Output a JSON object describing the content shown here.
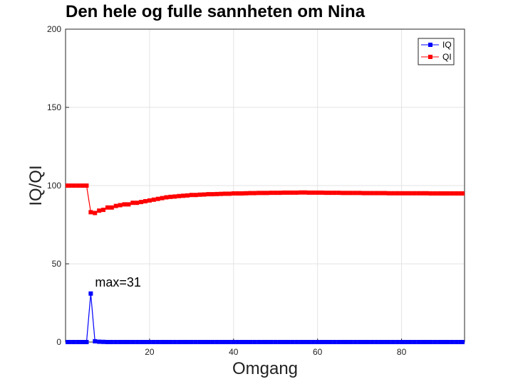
{
  "chart_data": {
    "type": "line",
    "title": "Den hele og fulle sannheten om Nina",
    "xlabel": "Omgang",
    "ylabel": "IQ/QI",
    "xlim": [
      0,
      95
    ],
    "ylim": [
      0,
      200
    ],
    "x_ticks": [
      20,
      40,
      60,
      80
    ],
    "y_ticks": [
      0,
      50,
      100,
      150,
      200
    ],
    "grid": true,
    "legend_position": "top-right",
    "annotation": {
      "text": "max=31",
      "x": 6,
      "y": 31
    },
    "colors": {
      "IQ": "#0000ff",
      "QI": "#ff0000"
    },
    "series": [
      {
        "name": "IQ",
        "x": [
          0,
          1,
          2,
          3,
          4,
          5,
          6,
          7,
          8,
          9,
          10,
          11,
          12,
          13,
          14,
          15,
          16,
          17,
          18,
          19,
          20,
          21,
          22,
          23,
          24,
          25,
          26,
          27,
          28,
          29,
          30,
          31,
          32,
          33,
          34,
          35,
          36,
          37,
          38,
          39,
          40,
          41,
          42,
          43,
          44,
          45,
          46,
          47,
          48,
          49,
          50,
          51,
          52,
          53,
          54,
          55,
          56,
          57,
          58,
          59,
          60,
          61,
          62,
          63,
          64,
          65,
          66,
          67,
          68,
          69,
          70,
          71,
          72,
          73,
          74,
          75,
          76,
          77,
          78,
          79,
          80,
          81,
          82,
          83,
          84,
          85,
          86,
          87,
          88,
          89,
          90,
          91,
          92,
          93,
          94,
          95
        ],
        "y": [
          0,
          0,
          0,
          0,
          0,
          0,
          31,
          0.5,
          0.2,
          0.1,
          0,
          0,
          0,
          0,
          0,
          0,
          0,
          0,
          0,
          0,
          0,
          0,
          0,
          0,
          0,
          0,
          0,
          0,
          0,
          0,
          0,
          0,
          0,
          0,
          0,
          0,
          0,
          0,
          0,
          0,
          0,
          0,
          0,
          0,
          0,
          0,
          0,
          0,
          0,
          0,
          0,
          0,
          0,
          0,
          0,
          0,
          0,
          0,
          0,
          0,
          0,
          0,
          0,
          0,
          0,
          0,
          0,
          0,
          0,
          0,
          0,
          0,
          0,
          0,
          0,
          0,
          0,
          0,
          0,
          0,
          0,
          0,
          0,
          0,
          0,
          0,
          0,
          0,
          0,
          0,
          0,
          0,
          0,
          0,
          0,
          0
        ]
      },
      {
        "name": "QI",
        "x": [
          0,
          1,
          2,
          3,
          4,
          5,
          6,
          7,
          8,
          9,
          10,
          11,
          12,
          13,
          14,
          15,
          16,
          17,
          18,
          19,
          20,
          21,
          22,
          23,
          24,
          25,
          26,
          27,
          28,
          29,
          30,
          31,
          32,
          33,
          34,
          35,
          36,
          37,
          38,
          39,
          40,
          41,
          42,
          43,
          44,
          45,
          46,
          47,
          48,
          49,
          50,
          51,
          52,
          53,
          54,
          55,
          56,
          57,
          58,
          59,
          60,
          61,
          62,
          63,
          64,
          65,
          66,
          67,
          68,
          69,
          70,
          71,
          72,
          73,
          74,
          75,
          76,
          77,
          78,
          79,
          80,
          81,
          82,
          83,
          84,
          85,
          86,
          87,
          88,
          89,
          90,
          91,
          92,
          93,
          94,
          95
        ],
        "y": [
          100,
          100,
          100,
          100,
          100,
          100,
          83,
          82.5,
          84,
          84.5,
          86,
          86,
          87,
          87.5,
          88,
          88,
          89,
          89,
          89.5,
          90,
          90.5,
          91,
          91.5,
          92,
          92.5,
          92.8,
          93,
          93.3,
          93.5,
          93.7,
          94,
          94,
          94.2,
          94.3,
          94.5,
          94.5,
          94.6,
          94.7,
          94.8,
          94.8,
          95,
          95,
          95,
          95.1,
          95.2,
          95.2,
          95.3,
          95.3,
          95.3,
          95.4,
          95.4,
          95.4,
          95.5,
          95.5,
          95.5,
          95.5,
          95.6,
          95.6,
          95.5,
          95.5,
          95.5,
          95.5,
          95.4,
          95.4,
          95.4,
          95.4,
          95.3,
          95.3,
          95.3,
          95.3,
          95.3,
          95.2,
          95.2,
          95.2,
          95.2,
          95.2,
          95.2,
          95.1,
          95.1,
          95.1,
          95.1,
          95.1,
          95.1,
          95.1,
          95.1,
          95.1,
          95.1,
          95,
          95,
          95,
          95,
          95,
          95,
          95,
          95,
          95
        ]
      }
    ]
  }
}
